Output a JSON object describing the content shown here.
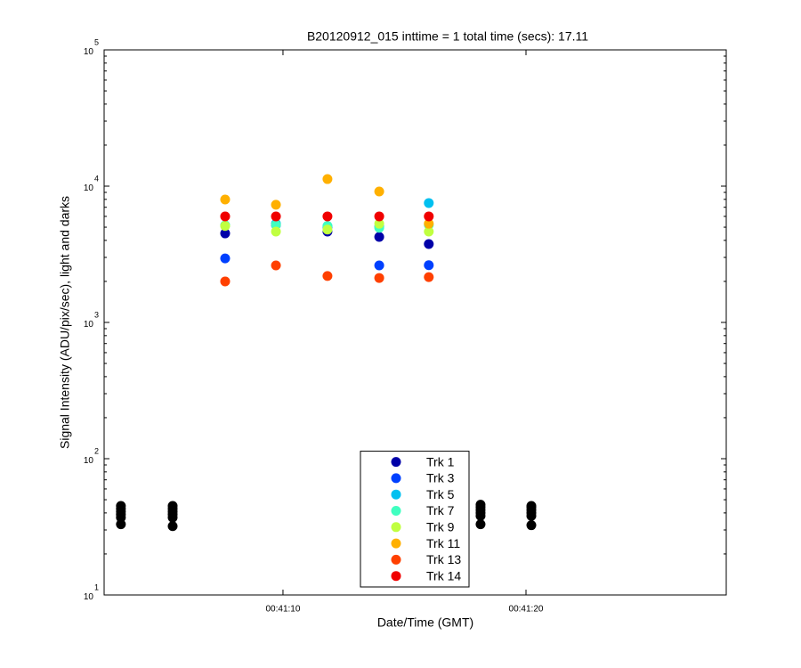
{
  "chart_data": {
    "type": "scatter",
    "title": "B20120912_015 inttime = 1 total time (secs): 17.11",
    "xlabel": "Date/Time (GMT)",
    "ylabel": "Signal Intensity (ADU/pix/sec), light and darks",
    "ylog": true,
    "grid": false,
    "legend": "lower center",
    "xlim": [
      2.64,
      28.24
    ],
    "xticks": [
      {
        "value": 10,
        "label": "00:41:10"
      },
      {
        "value": 20,
        "label": "00:41:20"
      }
    ],
    "ylim": [
      10,
      100000
    ],
    "yticks": [
      {
        "value": 10,
        "label": "10",
        "exponent": "1"
      },
      {
        "value": 100,
        "label": "10",
        "exponent": "2"
      },
      {
        "value": 1000,
        "label": "10",
        "exponent": "3"
      },
      {
        "value": 10000,
        "label": "10",
        "exponent": "4"
      },
      {
        "value": 100000,
        "label": "10",
        "exponent": "5"
      }
    ],
    "series": [
      {
        "color": "#000000",
        "x": [
          3.33,
          3.33,
          3.33,
          3.33,
          3.33,
          3.33,
          5.46,
          5.46,
          5.46,
          5.46,
          5.46,
          5.46,
          18.13,
          18.13,
          18.13,
          18.13,
          18.13,
          18.13,
          20.22,
          20.22,
          20.22,
          20.22,
          20.22,
          20.22
        ],
        "values": [
          33,
          37,
          39,
          41,
          43,
          45,
          32,
          37,
          39,
          41,
          43,
          45,
          33,
          38,
          40,
          42,
          44,
          46,
          32.5,
          38,
          40,
          42,
          44,
          45
        ]
      },
      {
        "name": "Trk 1",
        "color": "#0000a8",
        "x": [
          7.62,
          9.71,
          11.83,
          13.96,
          16.0
        ],
        "values": [
          4500,
          5200,
          4640,
          4240,
          3760
        ]
      },
      {
        "name": "Trk 3",
        "color": "#0040ff",
        "x": [
          7.62,
          9.71,
          11.83,
          13.96,
          16.0
        ],
        "values": [
          2950,
          5200,
          5000,
          2620,
          2630
        ]
      },
      {
        "name": "Trk 5",
        "color": "#00c0f0",
        "x": [
          7.62,
          9.71,
          11.83,
          13.96,
          16.0
        ],
        "values": [
          5150,
          5300,
          5100,
          5050,
          7520
        ]
      },
      {
        "name": "Trk 7",
        "color": "#40ffc0",
        "x": [
          7.62,
          9.71,
          11.83,
          13.96,
          16.0
        ],
        "values": [
          5150,
          5200,
          5100,
          4950,
          5200
        ]
      },
      {
        "name": "Trk 9",
        "color": "#c0ff40",
        "x": [
          7.62,
          9.71,
          11.83,
          13.96,
          16.0
        ],
        "values": [
          5100,
          4640,
          4800,
          5300,
          4640
        ]
      },
      {
        "name": "Trk 11",
        "color": "#ffb000",
        "x": [
          7.62,
          9.71,
          11.83,
          13.96,
          16.0
        ],
        "values": [
          7980,
          7300,
          11270,
          9140,
          5300
        ]
      },
      {
        "name": "Trk 13",
        "color": "#ff4000",
        "x": [
          7.62,
          9.71,
          11.83,
          13.96,
          16.0
        ],
        "values": [
          2000,
          2620,
          2190,
          2120,
          2150
        ]
      },
      {
        "name": "Trk 14",
        "color": "#f00000",
        "x": [
          7.62,
          9.71,
          11.83,
          13.96,
          16.0
        ],
        "values": [
          6000,
          6000,
          6000,
          6000,
          6000
        ]
      }
    ]
  }
}
